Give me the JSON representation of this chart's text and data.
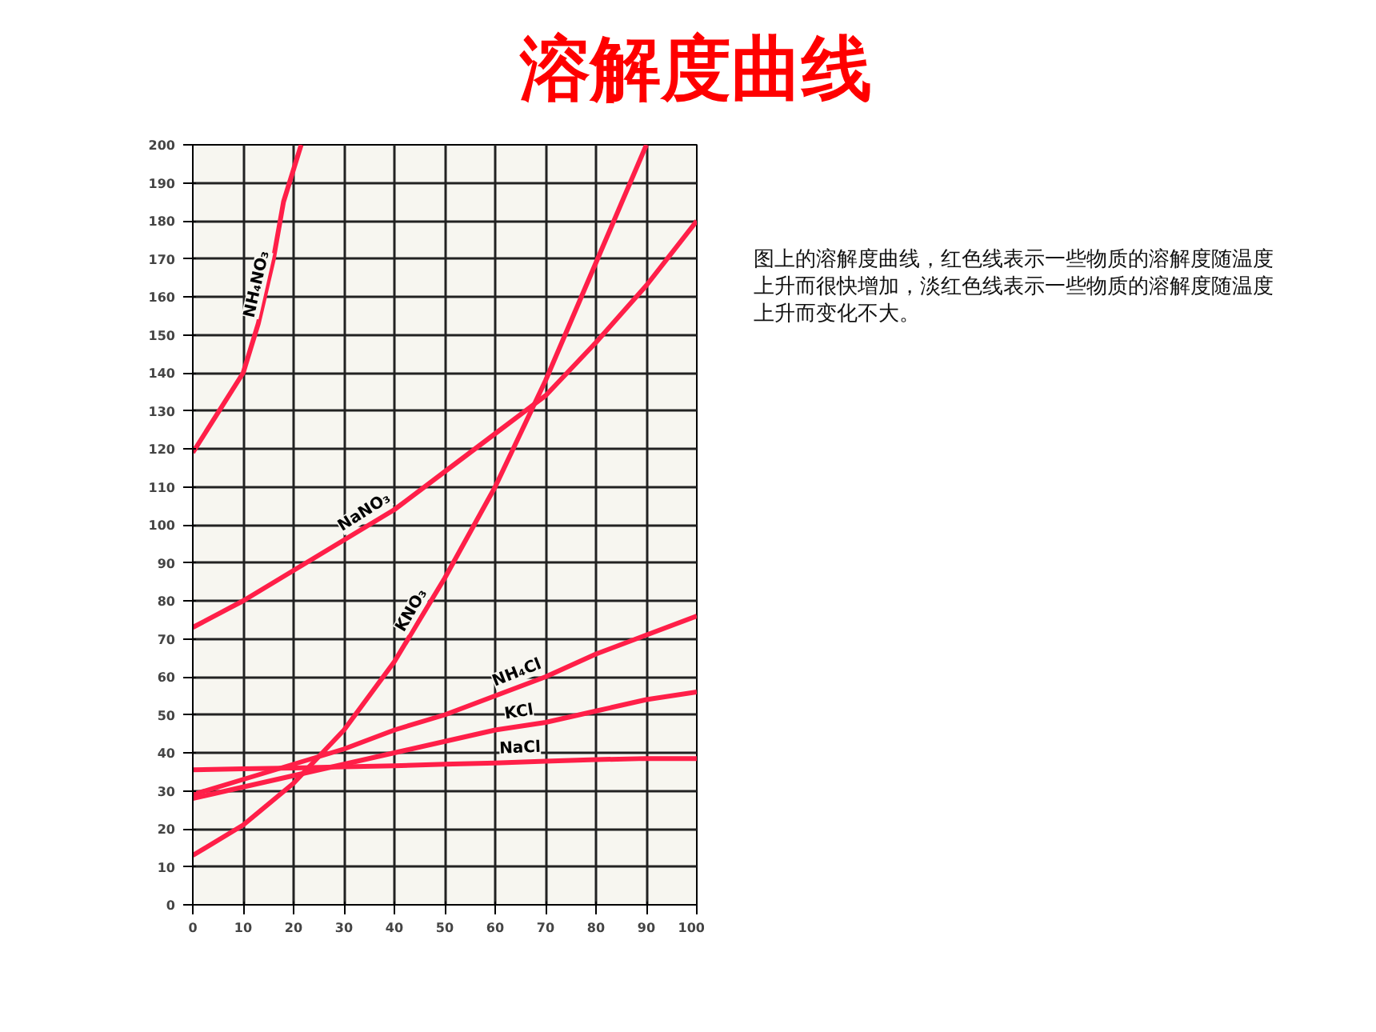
{
  "chart_data": {
    "type": "line",
    "title": "溶解度曲线",
    "annotations": [
      "图上的溶解度曲线，红色线表示一些物质的溶解度随温度上升而很快增加，淡红色线表示一些物质的溶解度随温度上升而变化不大。"
    ],
    "xlim": [
      0,
      100
    ],
    "ylim": [
      0,
      200
    ],
    "xticks": [
      0,
      10,
      20,
      30,
      40,
      50,
      60,
      70,
      80,
      90,
      100
    ],
    "yticks": [
      0,
      10,
      20,
      30,
      40,
      50,
      60,
      70,
      80,
      90,
      100,
      110,
      120,
      130,
      140,
      150,
      160,
      170,
      180,
      190,
      200
    ],
    "grid": true,
    "marker": "none",
    "line_style": "solid",
    "series": [
      {
        "name": "NH₄NO₃",
        "color": "#ff1f48",
        "x": [
          0,
          10,
          13,
          16,
          18,
          21.5
        ],
        "values": [
          119,
          140,
          153,
          170,
          185,
          200
        ]
      },
      {
        "name": "NaNO₃",
        "color": "#ff1f48",
        "x": [
          0,
          10,
          20,
          30,
          40,
          50,
          60,
          70,
          80,
          90,
          100
        ],
        "values": [
          73,
          80,
          88,
          96,
          104,
          114,
          124,
          134,
          148,
          163,
          180
        ]
      },
      {
        "name": "KNO₃",
        "color": "#ff1f48",
        "x": [
          0,
          10,
          20,
          30,
          40,
          50,
          60,
          70,
          80,
          90
        ],
        "values": [
          13,
          21,
          32,
          46,
          64,
          86,
          110,
          138,
          169,
          200
        ]
      },
      {
        "name": "NH₄Cl",
        "color": "#ff1f48",
        "x": [
          0,
          10,
          20,
          30,
          40,
          50,
          60,
          70,
          80,
          90,
          100
        ],
        "values": [
          29,
          33,
          37,
          41,
          46,
          50,
          55,
          60,
          66,
          71,
          76
        ]
      },
      {
        "name": "KCl",
        "color": "#ff1f48",
        "x": [
          0,
          10,
          20,
          30,
          40,
          50,
          60,
          70,
          80,
          90,
          100
        ],
        "values": [
          28,
          31,
          34,
          37,
          40,
          43,
          46,
          48,
          51,
          54,
          56
        ]
      },
      {
        "name": "NaCl",
        "color": "#ff1f48",
        "x": [
          0,
          10,
          20,
          30,
          40,
          50,
          60,
          70,
          80,
          90,
          100
        ],
        "values": [
          35.5,
          35.8,
          36,
          36.3,
          36.6,
          37,
          37.3,
          37.8,
          38.2,
          38.5,
          38.5
        ]
      }
    ]
  }
}
